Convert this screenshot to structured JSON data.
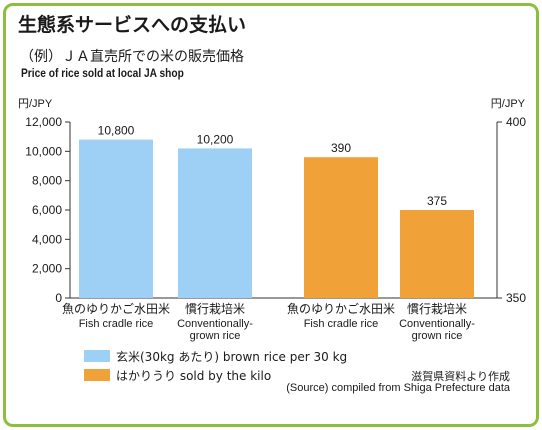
{
  "title": "生態系サービスへの支払い",
  "subtitle_ja": "（例）ＪＡ直売所での米の販売価格",
  "subtitle_en": "Price of rice sold at local JA shop",
  "chart_data": {
    "type": "bar",
    "left_axis": {
      "unit": "円/JPY",
      "ylim": [
        0,
        12000
      ],
      "ticks": [
        "0",
        "2,000",
        "4,000",
        "6,000",
        "8,000",
        "10,000",
        "12,000"
      ]
    },
    "right_axis": {
      "unit": "円/JPY",
      "ylim": [
        350,
        400
      ],
      "ticks": [
        "350",
        "400"
      ]
    },
    "bars": [
      {
        "series": "brown",
        "axis": "left",
        "value": 10800,
        "label": "10,800",
        "category_ja": "魚のゆりかご水田米",
        "category_en": "Fish cradle rice"
      },
      {
        "series": "brown",
        "axis": "left",
        "value": 10200,
        "label": "10,200",
        "category_ja": "慣行栽培米",
        "category_en": "Conventionally-grown rice"
      },
      {
        "series": "kilo",
        "axis": "right",
        "value": 390,
        "label": "390",
        "category_ja": "魚のゆりかご水田米",
        "category_en": "Fish cradle rice"
      },
      {
        "series": "kilo",
        "axis": "right",
        "value": 375,
        "label": "375",
        "category_ja": "慣行栽培米",
        "category_en": "Conventionally-grown rice"
      }
    ],
    "categories_en_lines": [
      [
        "Fish cradle rice"
      ],
      [
        "Conventionally-",
        "grown rice"
      ],
      [
        "Fish cradle rice"
      ],
      [
        "Conventionally-",
        "grown rice"
      ]
    ],
    "legend": [
      {
        "key": "brown",
        "label": "玄米(30kg あたり) brown rice per 30 kg",
        "color": "#9ed0f5"
      },
      {
        "key": "kilo",
        "label": "はかりうり sold by the kilo",
        "color": "#f0a238"
      }
    ],
    "grid": false,
    "legend_position": "bottom-left"
  },
  "source_ja": "滋賀県資料より作成",
  "source_en": "(Source) compiled from Shiga Prefecture data",
  "colors": {
    "border": "#8cbf3f",
    "brown_rice": "#9ed0f5",
    "by_kilo": "#f0a238"
  }
}
